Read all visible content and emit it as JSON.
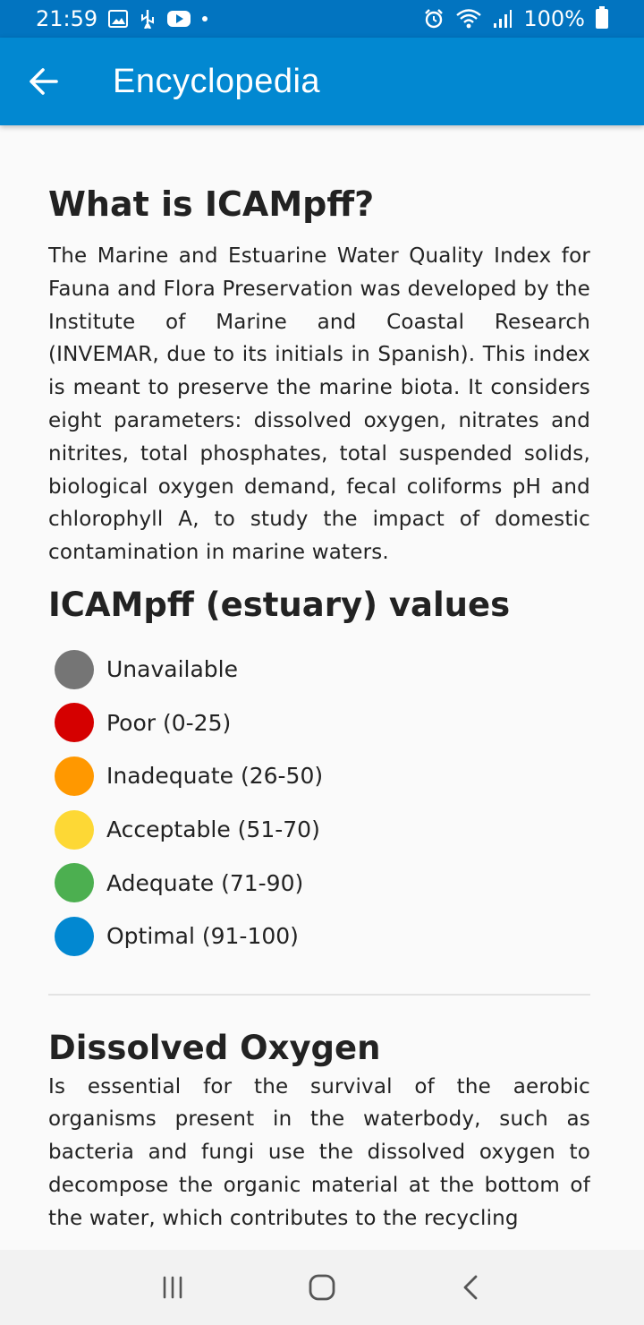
{
  "status_bar": {
    "time": "21:59",
    "battery": "100%",
    "left_icons": [
      "image-icon",
      "usb-icon",
      "youtube-icon",
      "dot-icon"
    ],
    "right_icons": [
      "alarm-icon",
      "wifi-icon",
      "signal-icon",
      "battery-icon"
    ]
  },
  "app_bar": {
    "title": "Encyclopedia",
    "back_icon": "arrow-left-icon",
    "color": "#0288d1"
  },
  "section_icampff": {
    "title": "What is ICAMpff?",
    "body": "The Marine and Estuarine Water Quality Index for Fauna and Flora Preservation was developed by the Institute of Marine and Coastal Research (INVEMAR, due to its initials in Spanish). This index is meant to preserve the marine biota. It considers eight parameters: dissolved oxygen, nitrates and nitrites, total phosphates, total suspended solids, biological oxygen demand, fecal coliforms pH and chlorophyll A, to study the impact of domestic contamination in marine waters."
  },
  "values": {
    "title": "ICAMpff (estuary) values",
    "items": [
      {
        "label": "Unavailable",
        "color": "#757575"
      },
      {
        "label": "Poor (0-25)",
        "color": "#d50000"
      },
      {
        "label": "Inadequate (26-50)",
        "color": "#ff9800"
      },
      {
        "label": "Acceptable (51-70)",
        "color": "#fdd835"
      },
      {
        "label": "Adequate (71-90)",
        "color": "#4caf50"
      },
      {
        "label": "Optimal (91-100)",
        "color": "#0288d1"
      }
    ]
  },
  "section_do": {
    "title": "Dissolved Oxygen",
    "body": "Is essential for the survival of the aerobic organisms present in the waterbody, such as bacteria and fungi use the dissolved oxygen to decompose the organic material at the bottom of the water, which contributes to the recycling"
  },
  "nav_bar": {
    "icons": [
      "recent-apps-icon",
      "home-icon",
      "back-icon"
    ]
  }
}
